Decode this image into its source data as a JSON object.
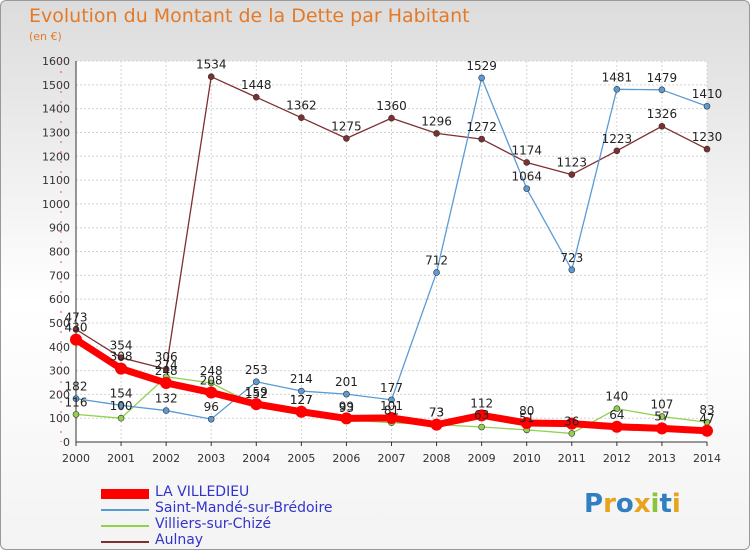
{
  "title": "Evolution du Montant de la Dette par Habitant",
  "unit": "(en €)",
  "logo": "Proxiti",
  "chart_data": {
    "type": "line",
    "title": "Evolution du Montant de la Dette par Habitant",
    "ylabel": "(en €)",
    "xlabel": "",
    "ylim": [
      0,
      1600
    ],
    "yticks": [
      0,
      100,
      200,
      300,
      400,
      500,
      600,
      700,
      800,
      900,
      1000,
      1100,
      1200,
      1300,
      1400,
      1500,
      1600
    ],
    "x": [
      "2000",
      "2001",
      "2002",
      "2003",
      "2004",
      "2005",
      "2006",
      "2007",
      "2008",
      "2009",
      "2010",
      "2011",
      "2012",
      "2013",
      "2014"
    ],
    "grid": true,
    "legend": "bottom-left",
    "series": [
      {
        "name": "LA VILLEDIEU",
        "color": "#ff0000",
        "values": [
          430,
          308,
          248,
          208,
          159,
          127,
          99,
          101,
          73,
          112,
          80,
          77,
          64,
          57,
          47
        ],
        "labels": [
          "430",
          "308",
          "248",
          "208",
          "159",
          "127",
          "99",
          "101",
          "73",
          "112",
          "80",
          "",
          "64",
          "57",
          "47"
        ]
      },
      {
        "name": "Saint-Mandé-sur-Brédoire",
        "color": "#5b9bd5",
        "values": [
          182,
          154,
          132,
          96,
          253,
          214,
          201,
          177,
          712,
          1529,
          1064,
          723,
          1481,
          1479,
          1410
        ],
        "labels": [
          "182",
          "154",
          "132",
          "96",
          "253",
          "214",
          "201",
          "177",
          "712",
          "1529",
          "1064",
          "723",
          "1481",
          "1479",
          "1410"
        ]
      },
      {
        "name": "Villiers-sur-Chizé",
        "color": "#92d050",
        "values": [
          116,
          100,
          274,
          248,
          152,
          127,
          93,
          81,
          73,
          63,
          51,
          36,
          140,
          107,
          83
        ],
        "labels": [
          "116",
          "100",
          "274",
          "248",
          "152",
          "127",
          "93",
          "81",
          "73",
          "63",
          "51",
          "36",
          "140",
          "107",
          "83"
        ]
      },
      {
        "name": "Aulnay",
        "color": "#7f2f2f",
        "values": [
          473,
          354,
          306,
          1534,
          1448,
          1362,
          1275,
          1360,
          1296,
          1272,
          1174,
          1123,
          1223,
          1326,
          1230
        ],
        "labels": [
          "473",
          "354",
          "306",
          "1534",
          "1448",
          "1362",
          "1275",
          "1360",
          "1296",
          "1272",
          "1174",
          "1123",
          "1223",
          "1326",
          "1230"
        ]
      }
    ]
  }
}
